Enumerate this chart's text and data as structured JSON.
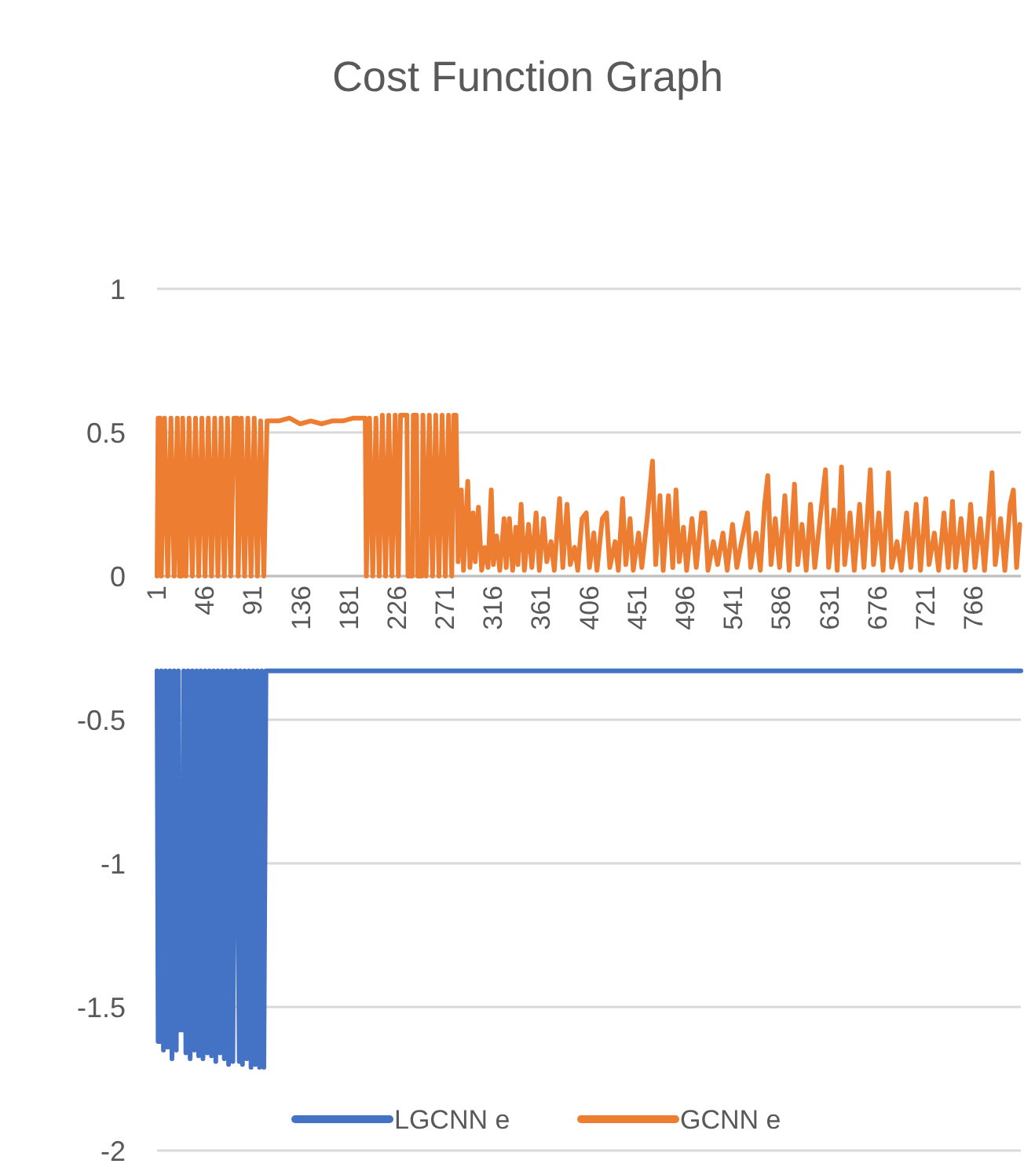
{
  "chart_data": {
    "type": "line",
    "title": "Cost Function Graph",
    "xlim": [
      1,
      810
    ],
    "xticks": [
      1,
      46,
      91,
      136,
      181,
      226,
      271,
      316,
      361,
      406,
      451,
      496,
      541,
      586,
      631,
      676,
      721,
      766
    ],
    "ylim": [
      -2,
      1
    ],
    "yticks": [
      -2,
      -1.5,
      -1,
      -0.5,
      0,
      0.5,
      1
    ],
    "grid": "y",
    "legend": "bottom",
    "marker": "none",
    "line_style": "solid",
    "series": [
      {
        "name": "LGCNN e",
        "color": "#4472c4",
        "x": [
          1,
          2,
          4,
          5,
          7,
          9,
          11,
          13,
          15,
          17,
          19,
          21,
          22,
          25,
          26,
          28,
          30,
          32,
          34,
          36,
          38,
          40,
          42,
          44,
          46,
          48,
          50,
          52,
          54,
          56,
          58,
          60,
          62,
          64,
          66,
          68,
          70,
          72,
          74,
          75,
          78,
          79,
          81,
          83,
          85,
          87,
          89,
          91,
          93,
          95,
          97,
          99,
          101,
          103,
          104,
          810
        ],
        "values": [
          -0.33,
          -1.62,
          -1.62,
          -0.33,
          -1.65,
          -0.33,
          -1.64,
          -0.33,
          -1.68,
          -0.33,
          -1.65,
          -0.33,
          -1.58,
          -1.58,
          -0.33,
          -1.66,
          -0.33,
          -1.68,
          -0.33,
          -1.65,
          -0.33,
          -1.67,
          -0.33,
          -1.68,
          -0.33,
          -1.66,
          -0.33,
          -1.67,
          -0.33,
          -1.69,
          -0.33,
          -1.66,
          -0.33,
          -1.68,
          -0.33,
          -1.7,
          -0.33,
          -1.69,
          -0.33,
          -0.33,
          -1.69,
          -0.33,
          -1.7,
          -0.33,
          -1.68,
          -0.33,
          -1.71,
          -0.33,
          -1.7,
          -0.33,
          -1.71,
          -0.33,
          -1.71,
          -0.33,
          -0.33,
          -0.33
        ]
      },
      {
        "name": "GCNN e",
        "color": "#ed7d31",
        "x": [
          1,
          2,
          4,
          5,
          8,
          11,
          14,
          17,
          20,
          22,
          24,
          25,
          28,
          31,
          34,
          37,
          40,
          43,
          46,
          49,
          52,
          55,
          58,
          61,
          64,
          67,
          70,
          73,
          76,
          77,
          80,
          83,
          86,
          89,
          92,
          95,
          98,
          101,
          104,
          115,
          125,
          135,
          145,
          155,
          165,
          175,
          185,
          196,
          197,
          200,
          203,
          206,
          209,
          212,
          215,
          218,
          221,
          224,
          227,
          229,
          235,
          236,
          240,
          241,
          244,
          245,
          249,
          250,
          253,
          256,
          259,
          262,
          265,
          268,
          271,
          274,
          277,
          279,
          281,
          283,
          286,
          288,
          292,
          294,
          297,
          299,
          302,
          305,
          308,
          311,
          314,
          316,
          319,
          322,
          326,
          328,
          331,
          334,
          337,
          339,
          342,
          345,
          349,
          352,
          356,
          359,
          363,
          366,
          370,
          373,
          378,
          381,
          385,
          388,
          392,
          395,
          399,
          403,
          406,
          410,
          413,
          418,
          422,
          425,
          430,
          433,
          437,
          440,
          444,
          447,
          452,
          455,
          460,
          465,
          468,
          472,
          475,
          480,
          484,
          487,
          490,
          494,
          497,
          502,
          506,
          511,
          514,
          517,
          522,
          526,
          531,
          535,
          540,
          544,
          549,
          554,
          557,
          562,
          566,
          570,
          573,
          576,
          580,
          584,
          589,
          593,
          598,
          601,
          605,
          609,
          613,
          617,
          622,
          627,
          630,
          635,
          638,
          642,
          645,
          650,
          654,
          659,
          663,
          669,
          672,
          677,
          681,
          686,
          689,
          694,
          698,
          703,
          707,
          712,
          716,
          721,
          724,
          729,
          733,
          738,
          742,
          746,
          749,
          754,
          758,
          763,
          767,
          772,
          776,
          783,
          786,
          791,
          795,
          800,
          803,
          806,
          809
        ],
        "values": [
          0,
          0.55,
          0.55,
          0,
          0.55,
          0,
          0.55,
          0,
          0.55,
          0,
          0,
          0.55,
          0,
          0.55,
          0,
          0.55,
          0,
          0.55,
          0,
          0.55,
          0,
          0.55,
          0,
          0.55,
          0,
          0.55,
          0,
          0.55,
          0.55,
          0,
          0.55,
          0,
          0.55,
          0,
          0.55,
          0,
          0.54,
          0,
          0.54,
          0.54,
          0.55,
          0.53,
          0.54,
          0.53,
          0.54,
          0.54,
          0.55,
          0.55,
          0,
          0.55,
          0,
          0.55,
          0,
          0.56,
          0,
          0.56,
          0,
          0.56,
          0,
          0.56,
          0.56,
          0,
          0,
          0.56,
          0.56,
          0,
          0,
          0.56,
          0,
          0.56,
          0,
          0.56,
          0,
          0.56,
          0,
          0.56,
          0,
          0.56,
          0.56,
          0.05,
          0.3,
          0.02,
          0.33,
          0.03,
          0.22,
          0.05,
          0.24,
          0.02,
          0.1,
          0.03,
          0.3,
          0.04,
          0.14,
          0.02,
          0.2,
          0.03,
          0.2,
          0.02,
          0.17,
          0.04,
          0.25,
          0.02,
          0.18,
          0.03,
          0.22,
          0.02,
          0.2,
          0.05,
          0.12,
          0.02,
          0.27,
          0.03,
          0.25,
          0.04,
          0.1,
          0.02,
          0.2,
          0.22,
          0.03,
          0.15,
          0.02,
          0.2,
          0.22,
          0.03,
          0.12,
          0.02,
          0.27,
          0.04,
          0.2,
          0.02,
          0.15,
          0.03,
          0.2,
          0.4,
          0.04,
          0.28,
          0.02,
          0.28,
          0.03,
          0.3,
          0.05,
          0.17,
          0.02,
          0.2,
          0.03,
          0.22,
          0.22,
          0.02,
          0.12,
          0.04,
          0.15,
          0.02,
          0.18,
          0.03,
          0.13,
          0.22,
          0.03,
          0.15,
          0.02,
          0.25,
          0.35,
          0.04,
          0.2,
          0.03,
          0.28,
          0.02,
          0.32,
          0.04,
          0.18,
          0.02,
          0.25,
          0.03,
          0.2,
          0.37,
          0.03,
          0.23,
          0.02,
          0.38,
          0.04,
          0.22,
          0.02,
          0.25,
          0.03,
          0.37,
          0.04,
          0.22,
          0.02,
          0.36,
          0.03,
          0.12,
          0.02,
          0.22,
          0.03,
          0.25,
          0.02,
          0.27,
          0.04,
          0.15,
          0.02,
          0.22,
          0.03,
          0.26,
          0.03,
          0.2,
          0.02,
          0.25,
          0.03,
          0.2,
          0.02,
          0.36,
          0.04,
          0.2,
          0.02,
          0.25,
          0.3,
          0.03,
          0.18
        ]
      }
    ]
  }
}
